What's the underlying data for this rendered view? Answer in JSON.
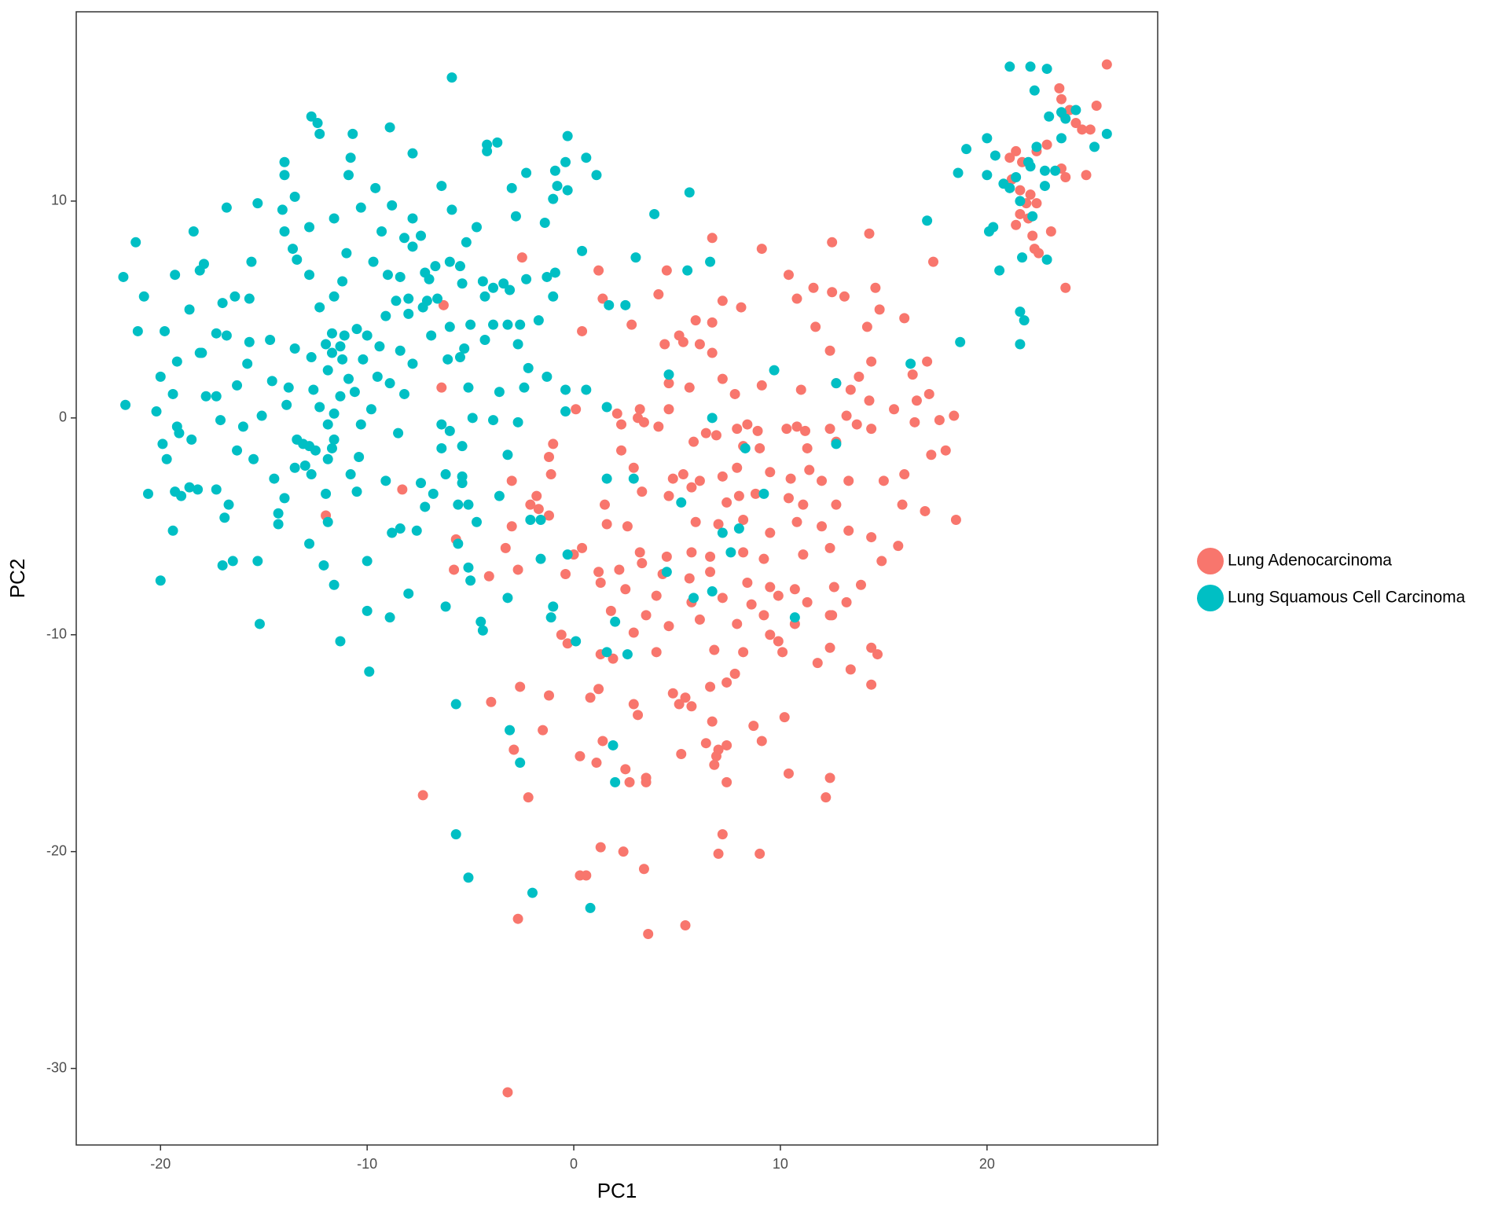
{
  "chart_data": {
    "type": "scatter",
    "x_label": "PC1",
    "y_label": "PC2",
    "xlim": [
      -24.08,
      28.26
    ],
    "ylim": [
      -33.53,
      18.73
    ],
    "xticks": [
      -20,
      -10,
      0,
      10,
      20
    ],
    "yticks": [
      -30,
      -20,
      -10,
      0,
      10
    ],
    "grid": false,
    "legend": "right",
    "series": [
      {
        "name": "Lung Adenocarcinoma",
        "color": "#F8766D",
        "x": [
          25.8,
          23.5,
          23.6,
          25.3,
          24,
          23.7,
          24.3,
          25,
          24.6,
          22.9,
          21.4,
          22.4,
          21.1,
          21.7,
          23.6,
          23.8,
          24.8,
          21.2,
          22.1,
          21.6,
          21.9,
          21.6,
          22.4,
          22,
          21.4,
          23.1,
          22.2,
          22.3,
          22.5,
          23.8,
          17.4,
          14.3,
          12.5,
          6.7,
          9.1,
          10.4,
          11.6,
          1.2,
          4.5,
          4.1,
          12.5,
          13.1,
          14.6,
          10.8,
          1.4,
          2.8,
          5.9,
          6.7,
          8.1,
          7.2,
          14.8,
          16,
          11.7,
          14.2,
          0.4,
          5.1,
          5.3,
          4.4,
          6.1,
          6.7,
          12.4,
          14.4,
          17.1,
          16.4,
          7.2,
          7.8,
          4.6,
          5.6,
          9.1,
          11,
          12.7,
          13.8,
          13.4,
          15.5,
          14.3,
          16.6,
          17.2,
          18.4,
          17.7,
          2.1,
          3.2,
          4.6,
          3.1,
          13.2,
          16.5,
          0.1,
          2.3,
          3.4,
          4.1,
          8.4,
          7.9,
          8.9,
          10.3,
          10.8,
          11.2,
          12.4,
          13.7,
          14.4,
          -1.0,
          -1.2,
          2.3,
          6.4,
          5.8,
          6.9,
          8.2,
          9,
          11.3,
          12.7,
          18,
          17.3,
          -1.1,
          -3.0,
          2.9,
          4.8,
          5.3,
          6.1,
          7.2,
          7.9,
          9.5,
          10.5,
          11.4,
          12.0,
          13.3,
          15.0,
          16.0,
          -1.8,
          -2.1,
          -1.7,
          1.5,
          3.3,
          4.6,
          5.7,
          7.4,
          8.0,
          8.8,
          10.4,
          11.1,
          12.7,
          15.9,
          17,
          18.5,
          -3.0,
          -1.2,
          1.6,
          2.6,
          5.9,
          7.0,
          8.2,
          9.5,
          10.8,
          12.0,
          13.3,
          14.4,
          15.7,
          -5.7,
          -3.3,
          0.4,
          0.0,
          3.2,
          4.5,
          5.7,
          6.6,
          8.2,
          9.2,
          11.1,
          12.4,
          14.9,
          -5.8,
          -4.1,
          -2.7,
          -0.4,
          1.2,
          2.2,
          3.3,
          4.3,
          5.6,
          6.6,
          8.4,
          9.5,
          10.7,
          12.6,
          13.9,
          1.3,
          2.5,
          4.0,
          5.7,
          7.2,
          8.6,
          9.9,
          11.3,
          12.5,
          13.2,
          1.8,
          3.5,
          6.1,
          9.2,
          10.7,
          12.4,
          -0.6,
          -0.3,
          2.9,
          4.6,
          7.9,
          9.5,
          9.9,
          1.3,
          1.9,
          4.0,
          6.8,
          8.2,
          10.1,
          11.8,
          12.4,
          14.4,
          14.7,
          -2.6,
          -1.2,
          0.8,
          1.2,
          4.8,
          5.4,
          6.6,
          7.4,
          7.8,
          13.4,
          14.4,
          -4.0,
          -1.5,
          2.9,
          5.1,
          5.7,
          6.7,
          8.7,
          10.2,
          3.1,
          -2.9,
          0.3,
          1.4,
          1.1,
          2.5,
          3.5,
          5.2,
          6.4,
          7.0,
          6.9,
          7.4,
          9.1,
          10.4,
          12.4,
          12.2,
          -7.3,
          -2.2,
          2.7,
          3.5,
          7.4,
          6.8,
          1.3,
          2.4,
          3.4,
          7.0,
          7.2,
          9.0,
          0.3,
          0.6,
          -2.7,
          3.6,
          5.4,
          -3.2,
          -6.4,
          -6.3,
          -8.3,
          -12.0,
          -2.5
        ],
        "values": [
          16.3,
          15.2,
          14.7,
          14.4,
          14.2,
          14,
          13.6,
          13.3,
          13.3,
          12.6,
          12.3,
          12.3,
          12,
          11.8,
          11.5,
          11.1,
          11.2,
          11,
          10.3,
          10.5,
          9.9,
          9.4,
          9.9,
          9.2,
          8.9,
          8.6,
          8.4,
          7.8,
          7.6,
          6,
          7.2,
          8.5,
          8.1,
          8.3,
          7.8,
          6.6,
          6,
          6.8,
          6.8,
          5.7,
          5.8,
          5.6,
          6,
          5.5,
          5.5,
          4.3,
          4.5,
          4.4,
          5.1,
          5.4,
          5,
          4.6,
          4.2,
          4.2,
          4,
          3.8,
          3.5,
          3.4,
          3.4,
          3,
          3.1,
          2.6,
          2.6,
          2,
          1.8,
          1.1,
          1.6,
          1.4,
          1.5,
          1.3,
          1.6,
          1.9,
          1.3,
          0.4,
          0.8,
          0.8,
          1.1,
          0.1,
          -0.1,
          0.2,
          0.4,
          0.4,
          0,
          0.1,
          -0.2,
          0.4,
          -0.3,
          -0.2,
          -0.4,
          -0.3,
          -0.5,
          -0.6,
          -0.5,
          -0.4,
          -0.6,
          -0.5,
          -0.3,
          -0.5,
          -1.2,
          -1.8,
          -1.5,
          -0.7,
          -1.1,
          -0.8,
          -1.3,
          -1.4,
          -1.4,
          -1.1,
          -1.5,
          -1.7,
          -2.6,
          -2.9,
          -2.3,
          -2.8,
          -2.6,
          -2.9,
          -2.7,
          -2.3,
          -2.5,
          -2.8,
          -2.4,
          -2.9,
          -2.9,
          -2.9,
          -2.6,
          -3.6,
          -4.0,
          -4.2,
          -4.0,
          -3.4,
          -3.6,
          -3.2,
          -3.9,
          -3.6,
          -3.5,
          -3.7,
          -4.0,
          -4.0,
          -4.0,
          -4.3,
          -4.7,
          -5.0,
          -4.5,
          -4.9,
          -5.0,
          -4.8,
          -4.9,
          -4.7,
          -5.3,
          -4.8,
          -5.0,
          -5.2,
          -5.5,
          -5.9,
          -5.6,
          -6.0,
          -6.0,
          -6.3,
          -6.2,
          -6.4,
          -6.2,
          -6.4,
          -6.2,
          -6.5,
          -6.3,
          -6.0,
          -6.6,
          -7.0,
          -7.3,
          -7.0,
          -7.2,
          -7.1,
          -7.0,
          -6.7,
          -7.2,
          -7.4,
          -7.1,
          -7.6,
          -7.8,
          -7.9,
          -7.8,
          -7.7,
          -7.6,
          -7.9,
          -8.2,
          -8.5,
          -8.3,
          -8.6,
          -8.2,
          -8.5,
          -9.1,
          -8.5,
          -8.9,
          -9.1,
          -9.3,
          -9.1,
          -9.5,
          -9.1,
          -10.0,
          -10.4,
          -9.9,
          -9.6,
          -9.5,
          -10.0,
          -10.3,
          -10.9,
          -11.1,
          -10.8,
          -10.7,
          -10.8,
          -10.8,
          -11.3,
          -10.6,
          -10.6,
          -10.9,
          -12.4,
          -12.8,
          -12.9,
          -12.5,
          -12.7,
          -12.9,
          -12.4,
          -12.2,
          -11.8,
          -11.6,
          -12.3,
          -13.1,
          -14.4,
          -13.2,
          -13.2,
          -13.3,
          -14.0,
          -14.2,
          -13.8,
          -13.7,
          -15.3,
          -15.6,
          -14.9,
          -15.9,
          -16.2,
          -16.6,
          -15.5,
          -15.0,
          -15.3,
          -15.6,
          -15.1,
          -14.9,
          -16.4,
          -16.6,
          -17.5,
          -17.4,
          -17.5,
          -16.8,
          -16.8,
          -16.8,
          -16.0,
          -19.8,
          -20.0,
          -20.8,
          -20.1,
          -19.2,
          -20.1,
          -21.1,
          -21.1,
          -23.1,
          -23.8,
          -23.4,
          -31.1,
          1.4,
          5.2,
          -3.3,
          -4.5,
          7.4
        ]
      },
      {
        "name": "Lung Squamous Cell Carcinoma",
        "color": "#00BFC4",
        "x": [
          21.1,
          22.1,
          22.9,
          22.3,
          -5.9,
          24.3,
          23.6,
          23.0,
          23.8,
          25.8,
          23.6,
          25.2,
          20,
          22.4,
          19.0,
          20.4,
          22,
          18.6,
          22.8,
          23.3,
          22.1,
          20,
          21.4,
          20.8,
          21.1,
          22.8,
          21.6,
          22.2,
          17.1,
          20.1,
          20.3,
          21.7,
          22.9,
          20.6,
          21.6,
          21.8,
          21.6,
          18.7,
          16.3,
          9.7,
          12.7,
          4.6,
          6.7,
          12.7,
          8.3,
          1.6,
          2.9,
          5.2,
          9.2,
          6.7,
          8.0,
          4.5,
          2.0,
          2.6,
          1.6,
          0.1,
          -1.0,
          -1.1,
          -1.6,
          -1.6,
          -2.1,
          -0.3,
          0.8,
          -2.0,
          -5.1,
          -5.7,
          -2.6,
          -3.1,
          -5.7,
          1.9,
          2.0,
          -4.4,
          -4.5,
          -3.2,
          -6.2,
          -5.6,
          -5.1,
          -5.0,
          -4.7,
          -5.1,
          -3.6,
          -3.2,
          -2.7,
          -3.9,
          -4.9,
          -6.4,
          -6.4,
          -5.4,
          -5.4,
          -6.2,
          -6.8,
          -7.4,
          -8.4,
          -8.8,
          -7.6,
          -7.2,
          -8.0,
          -8.9,
          -10.0,
          -9.9,
          -11.3,
          -11.6,
          -12.8,
          -10.0,
          -12.1,
          -11.9,
          -10.5,
          -9.1,
          -10.8,
          -12.7,
          -13.5,
          -15.3,
          -15.2,
          -16.5,
          -17.0,
          -16.9,
          -16.7,
          -17.3,
          -18.2,
          -18.6,
          -19.3,
          -19.0,
          -20.0,
          -20.6,
          -19.4,
          -14.3,
          -14.3,
          -14.0,
          -14.5,
          -15.5,
          -16.3,
          -16.0,
          -17.1,
          -17.3,
          -18.5,
          -19.9,
          -19.7,
          -19.2,
          -19.1,
          -20.2,
          -21.7,
          -19.4,
          -20.0,
          -19.2,
          -18.0,
          -17.8,
          -16.3,
          -15.8,
          -14.6,
          -13.8,
          -12.6,
          -11.3,
          -10.3,
          -9.8,
          -11.9,
          -11.6,
          -13.9,
          -15.1,
          -13.4,
          -12.8,
          -11.9,
          -10.4,
          -8.5,
          -8.9,
          -8.2,
          -7.8,
          -8.4,
          -9.4,
          -10.0,
          -11.1,
          -11.7,
          -12.0,
          -12.7,
          -13.5,
          -14.7,
          -15.7,
          -16.8,
          -17.3,
          -18.1,
          -19.8,
          -21.1,
          -20.8,
          -21.8,
          -21.2,
          -19.3,
          -18.6,
          -18.1,
          -18.4,
          -17.9,
          -17.0,
          -16.4,
          -15.7,
          -15.6,
          -16.8,
          -15.3,
          -14.1,
          -14.0,
          -13.4,
          -13.6,
          -12.8,
          -12.8,
          -12.3,
          -11.6,
          -11.2,
          -11.0,
          -9.7,
          -9.3,
          -9.6,
          -8.8,
          -8.2,
          -7.4,
          -7.2,
          -7.3,
          -6.6,
          -6.9,
          -5.3,
          -4.3,
          -3.9,
          -2.7,
          -2.2,
          -1.3,
          -0.4,
          0.6,
          1.6,
          -0.4,
          -2.3,
          -1.3,
          -1.0,
          -0.9,
          -3.9,
          -4.4,
          -5.2,
          -5.9,
          -6.4,
          -7.8,
          -7.8,
          -8.9,
          -10.8,
          -10.9,
          -10.3,
          -11.6,
          -12.7,
          -12.4,
          -12.3,
          -14.0,
          -14.0,
          -13.5,
          -10.7,
          -4.2,
          -3.7,
          -4.2,
          -2.3,
          -3.0,
          -2.8,
          -1.4,
          -0.3,
          -1.0,
          -0.8,
          -0.9,
          -0.4,
          0.6,
          1.1,
          -0.3,
          3.9,
          5.6,
          0.4,
          3.0,
          5.5,
          6.6,
          1.7,
          2.5,
          -6.0,
          -5.0,
          -6.1,
          -5.5,
          -1.7,
          -2.6,
          -3.6,
          -5.1,
          -6.0,
          -5.4,
          -5.6,
          -3.2,
          -2.4,
          7.2,
          5.8,
          7.6,
          10.7,
          -13,
          -12,
          -12.5,
          -13.1,
          -11.7,
          -12.3,
          -11.6,
          -10.9,
          -11.9,
          -11.2,
          -10.2,
          -9.5,
          -10.6,
          -11.7,
          -11.3,
          -10.5,
          -9.1,
          -8.0,
          -8.6,
          -9.0,
          -8.4,
          -7.0,
          -7.8,
          -6.0,
          -5.4,
          -4.3,
          -3.1,
          -3.4,
          -4.7,
          -5.5,
          -6.7,
          -7.1,
          -8.0
        ],
        "values": [
          16.2,
          16.2,
          16.1,
          15.1,
          15.7,
          14.2,
          14.1,
          13.9,
          13.8,
          13.1,
          12.9,
          12.5,
          12.9,
          12.5,
          12.4,
          12.1,
          11.8,
          11.3,
          11.4,
          11.4,
          11.6,
          11.2,
          11.1,
          10.8,
          10.6,
          10.7,
          10.0,
          9.3,
          9.1,
          8.6,
          8.8,
          7.4,
          7.3,
          6.8,
          4.9,
          4.5,
          3.4,
          3.5,
          2.5,
          2.2,
          1.6,
          2,
          0,
          -1.2,
          -1.4,
          -2.8,
          -2.8,
          -3.9,
          -3.5,
          -8.0,
          -5.1,
          -7.1,
          -9.4,
          -10.9,
          -10.8,
          -10.3,
          -8.7,
          -9.2,
          -6.5,
          -4.7,
          -4.7,
          -6.3,
          -22.6,
          -21.9,
          -21.2,
          -19.2,
          -15.9,
          -14.4,
          -13.2,
          -15.1,
          -16.8,
          -9.8,
          -9.4,
          -8.3,
          -8.7,
          -5.8,
          -6.9,
          -7.5,
          -4.8,
          -4.0,
          -3.6,
          -1.7,
          -0.2,
          -0.1,
          0,
          -0.3,
          -1.4,
          -1.3,
          -2.7,
          -2.6,
          -3.5,
          -3.0,
          -5.1,
          -5.3,
          -5.2,
          -4.1,
          -8.1,
          -9.2,
          -8.9,
          -11.7,
          -10.3,
          -7.7,
          -5.8,
          -6.6,
          -6.8,
          -4.8,
          -3.4,
          -2.9,
          -2.6,
          -2.6,
          -2.3,
          -6.6,
          -9.5,
          -6.6,
          -6.8,
          -4.6,
          -4.0,
          -3.3,
          -3.3,
          -3.2,
          -3.4,
          -3.6,
          -7.5,
          -3.5,
          -5.2,
          -4.4,
          -4.9,
          -3.7,
          -2.8,
          -1.9,
          -1.5,
          -0.4,
          -0.1,
          1.0,
          -1.0,
          -1.2,
          -1.9,
          -0.4,
          -0.7,
          0.3,
          0.6,
          1.1,
          1.9,
          2.6,
          3.0,
          1.0,
          1.5,
          2.5,
          1.7,
          1.4,
          1.3,
          1.0,
          -0.3,
          0.4,
          -0.3,
          0.2,
          0.6,
          0.1,
          -1.0,
          -1.3,
          -1.9,
          -1.8,
          -0.7,
          1.6,
          1.1,
          2.5,
          3.1,
          3.3,
          3.8,
          3.8,
          3.0,
          3.4,
          2.8,
          3.2,
          3.6,
          3.5,
          3.8,
          3.9,
          3.0,
          4.0,
          4.0,
          5.6,
          6.5,
          8.1,
          6.6,
          5.0,
          6.8,
          8.6,
          7.1,
          5.3,
          5.6,
          5.5,
          7.2,
          9.7,
          9.9,
          9.6,
          8.6,
          7.3,
          7.8,
          8.8,
          6.6,
          5.1,
          5.6,
          6.3,
          7.6,
          7.2,
          8.6,
          10.6,
          9.8,
          8.3,
          8.4,
          6.7,
          5.1,
          5.5,
          3.8,
          3.2,
          3.6,
          4.3,
          3.4,
          2.3,
          1.9,
          1.3,
          1.3,
          0.5,
          0.3,
          6.4,
          6.5,
          5.6,
          6.7,
          6.0,
          6.3,
          8.1,
          9.6,
          10.7,
          9.2,
          12.2,
          13.4,
          12.0,
          11.2,
          9.7,
          9.2,
          13.9,
          13.6,
          13.1,
          11.8,
          11.2,
          10.2,
          13.1,
          12.6,
          12.7,
          12.3,
          11.3,
          10.6,
          9.3,
          9.0,
          10.5,
          10.1,
          10.7,
          11.4,
          11.8,
          12.0,
          11.2,
          13.0,
          9.4,
          10.4,
          7.7,
          7.4,
          6.8,
          7.2,
          5.2,
          5.2,
          4.2,
          4.3,
          2.7,
          2.8,
          4.5,
          4.3,
          1.2,
          1.4,
          -0.6,
          -3.0,
          -4.0,
          4.3,
          1.4,
          -5.3,
          -8.3,
          -6.2,
          -9.2,
          -2.2,
          -3.5,
          -1.5,
          -1.2,
          -1.4,
          0.5,
          -1.0,
          1.8,
          2.2,
          2.7,
          2.7,
          1.9,
          1.2,
          3.9,
          3.3,
          4.1,
          4.7,
          4.8,
          5.4,
          6.6,
          6.5,
          6.4,
          7.9,
          7.2,
          6.2,
          5.6,
          5.9,
          6.2,
          8.8,
          7.0,
          7.0,
          5.4,
          5.5
        ]
      }
    ]
  }
}
